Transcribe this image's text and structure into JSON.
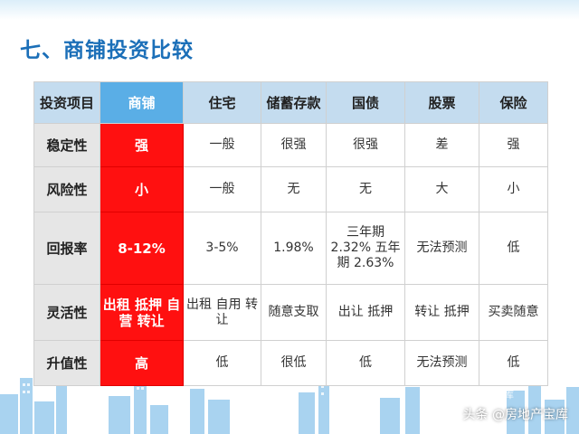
{
  "title": "七、商铺投资比较",
  "table": {
    "headers": [
      "投资项目",
      "商铺",
      "住宅",
      "储蓄存款",
      "国债",
      "股票",
      "保险"
    ],
    "rows": [
      {
        "label": "稳定性",
        "cells": [
          "强",
          "一般",
          "很强",
          "很强",
          "差",
          "强"
        ]
      },
      {
        "label": "风险性",
        "cells": [
          "小",
          "一般",
          "无",
          "无",
          "大",
          "小"
        ]
      },
      {
        "label": "回报率",
        "cells": [
          "8-12%",
          "3-5%",
          "1.98%",
          "三年期 2.32% 五年期 2.63%",
          "无法预测",
          "低"
        ]
      },
      {
        "label": "灵活性",
        "cells": [
          "出租 抵押 自营 转让",
          "出租 自用 转让",
          "随意支取",
          "出让 抵押",
          "转让 抵押",
          "买卖随意"
        ]
      },
      {
        "label": "升值性",
        "cells": [
          "高",
          "低",
          "很低",
          "低",
          "无法预测",
          "低"
        ]
      }
    ]
  },
  "watermark": {
    "text": "头条 @房地产宝库",
    "logo_text": "房地产宝库"
  },
  "colors": {
    "title": "#1b6fb8",
    "shop_highlight": "#ff1010",
    "header_bg": "#c4dcef",
    "shop_header_bg": "#5aaee6",
    "label_bg": "#e6e6e6",
    "skyline": "#a9d3f0"
  }
}
